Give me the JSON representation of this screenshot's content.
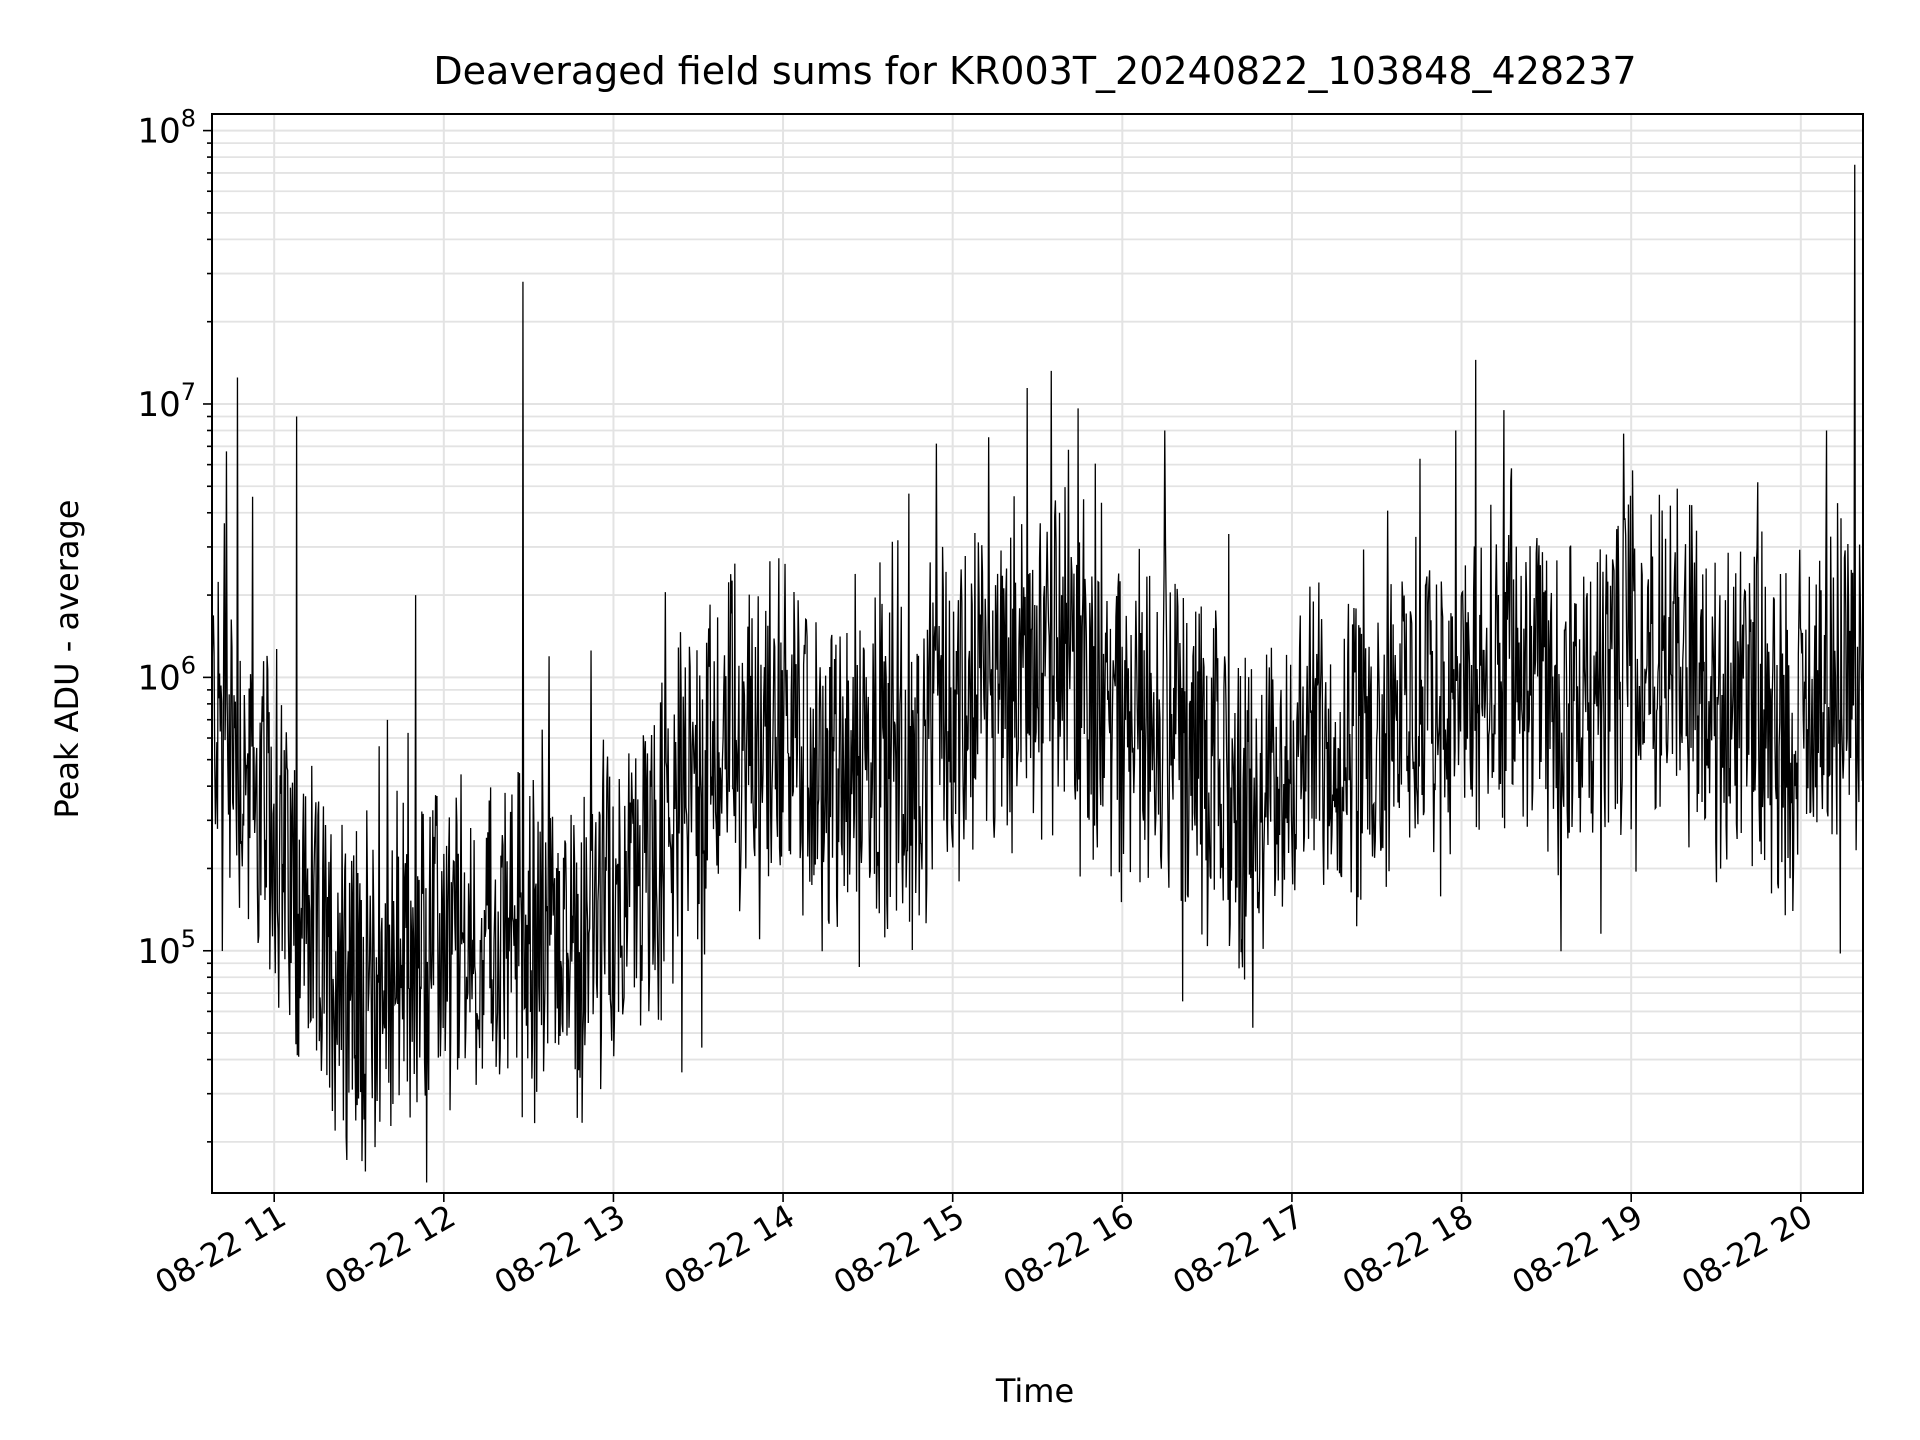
{
  "chart_data": {
    "type": "line",
    "title": "Deaveraged field sums for KR003T_20240822_103848_428237",
    "xlabel": "Time",
    "ylabel": "Peak ADU - average",
    "yscale": "log",
    "ylim": [
      13000,
      115000000
    ],
    "xlim": [
      "2024-08-22 10:38:48",
      "2024-08-22 20:22:00"
    ],
    "grid": true,
    "grid_minor": true,
    "x_tick_labels": [
      "08-22 11",
      "08-22 12",
      "08-22 13",
      "08-22 14",
      "08-22 15",
      "08-22 16",
      "08-22 17",
      "08-22 18",
      "08-22 19",
      "08-22 20"
    ],
    "x_tick_times": [
      "2024-08-22 11:00",
      "2024-08-22 12:00",
      "2024-08-22 13:00",
      "2024-08-22 14:00",
      "2024-08-22 15:00",
      "2024-08-22 16:00",
      "2024-08-22 17:00",
      "2024-08-22 18:00",
      "2024-08-22 19:00",
      "2024-08-22 20:00"
    ],
    "y_ticks": [
      {
        "base": "10",
        "exp": "5",
        "value": 100000
      },
      {
        "base": "10",
        "exp": "6",
        "value": 1000000
      },
      {
        "base": "10",
        "exp": "7",
        "value": 10000000
      },
      {
        "base": "10",
        "exp": "8",
        "value": 100000000
      }
    ],
    "series": [
      {
        "color": "#000000",
        "x": [
          "2024-08-22 10:38",
          "2024-08-22 10:45",
          "2024-08-22 10:52",
          "2024-08-22 11:05",
          "2024-08-22 11:15",
          "2024-08-22 11:25",
          "2024-08-22 11:35",
          "2024-08-22 11:45",
          "2024-08-22 12:00",
          "2024-08-22 12:15",
          "2024-08-22 12:30",
          "2024-08-22 12:45",
          "2024-08-22 13:00",
          "2024-08-22 13:15",
          "2024-08-22 13:30",
          "2024-08-22 13:45",
          "2024-08-22 14:00",
          "2024-08-22 14:15",
          "2024-08-22 14:30",
          "2024-08-22 14:45",
          "2024-08-22 15:00",
          "2024-08-22 15:15",
          "2024-08-22 15:30",
          "2024-08-22 15:45",
          "2024-08-22 16:00",
          "2024-08-22 16:15",
          "2024-08-22 16:30",
          "2024-08-22 16:45",
          "2024-08-22 17:00",
          "2024-08-22 17:15",
          "2024-08-22 17:30",
          "2024-08-22 17:45",
          "2024-08-22 18:00",
          "2024-08-22 18:15",
          "2024-08-22 18:30",
          "2024-08-22 18:45",
          "2024-08-22 19:00",
          "2024-08-22 19:15",
          "2024-08-22 19:30",
          "2024-08-22 19:45",
          "2024-08-22 20:00",
          "2024-08-22 20:10",
          "2024-08-22 20:20"
        ],
        "y": [
          800000,
          600000,
          400000,
          200000,
          100000,
          80000,
          70000,
          90000,
          100000,
          110000,
          110000,
          100000,
          150000,
          200000,
          500000,
          600000,
          700000,
          400000,
          600000,
          400000,
          800000,
          1000000,
          1200000,
          1000000,
          700000,
          800000,
          400000,
          300000,
          500000,
          600000,
          700000,
          700000,
          800000,
          900000,
          900000,
          800000,
          1200000,
          1300000,
          800000,
          700000,
          500000,
          1000000,
          900000
        ],
        "spikes": [
          {
            "x": "2024-08-22 10:47",
            "y": 12500000
          },
          {
            "x": "2024-08-22 11:08",
            "y": 9000000
          },
          {
            "x": "2024-08-22 11:50",
            "y": 2000000
          },
          {
            "x": "2024-08-22 12:28",
            "y": 28000000
          },
          {
            "x": "2024-08-22 15:41",
            "y": 6800000
          },
          {
            "x": "2024-08-22 16:15",
            "y": 8000000
          },
          {
            "x": "2024-08-22 17:58",
            "y": 8000000
          },
          {
            "x": "2024-08-22 18:05",
            "y": 14500000
          },
          {
            "x": "2024-08-22 18:15",
            "y": 9500000
          },
          {
            "x": "2024-08-22 20:19",
            "y": 75000000
          }
        ]
      }
    ]
  }
}
